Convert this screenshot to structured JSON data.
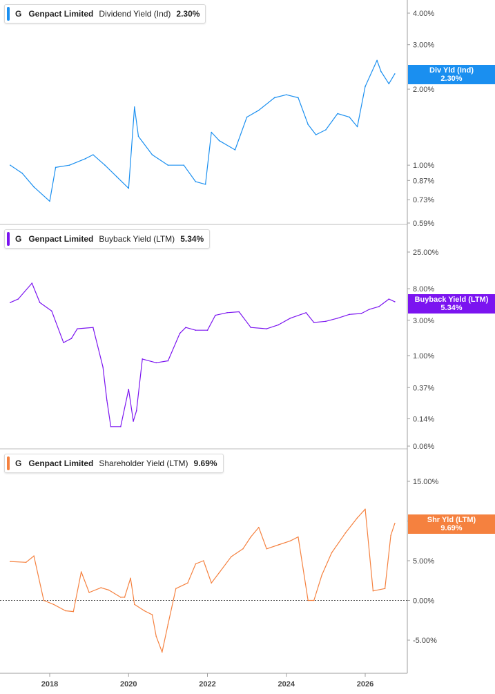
{
  "panels": [
    {
      "ticker": "G",
      "company": "Genpact Limited",
      "metric": "Dividend Yield (Ind)",
      "value": "2.30%",
      "color": "#1a8ff0",
      "badge_label": "Div Yld (Ind)",
      "badge_value": "2.30%",
      "scale": "log",
      "ticks": [
        "4.00%",
        "3.00%",
        "2.00%",
        "1.00%",
        "0.87%",
        "0.73%",
        "0.59%"
      ],
      "tick_values": [
        4.0,
        3.0,
        2.0,
        1.0,
        0.87,
        0.73,
        0.59
      ]
    },
    {
      "ticker": "G",
      "company": "Genpact Limited",
      "metric": "Buyback Yield (LTM)",
      "value": "5.34%",
      "color": "#7b14f0",
      "badge_label": "Buyback Yield (LTM)",
      "badge_value": "5.34%",
      "scale": "log",
      "ticks": [
        "25.00%",
        "8.00%",
        "3.00%",
        "1.00%",
        "0.37%",
        "0.14%",
        "0.06%"
      ],
      "tick_values": [
        25.0,
        8.0,
        3.0,
        1.0,
        0.37,
        0.14,
        0.06
      ]
    },
    {
      "ticker": "G",
      "company": "Genpact Limited",
      "metric": "Shareholder Yield (LTM)",
      "value": "9.69%",
      "color": "#f5813f",
      "badge_label": "Shr Yld (LTM)",
      "badge_value": "9.69%",
      "scale": "linear",
      "ticks": [
        "15.00%",
        "10.00%",
        "5.00%",
        "0.00%",
        "-5.00%"
      ],
      "tick_values": [
        15.0,
        10.0,
        5.0,
        0.0,
        -5.0
      ]
    }
  ],
  "x_ticks": [
    "2018",
    "2020",
    "2022",
    "2024",
    "2026"
  ],
  "chart_data": [
    {
      "type": "line",
      "title": "Genpact Limited Dividend Yield (Ind)",
      "yscale": "log",
      "ylim": [
        0.59,
        4.0
      ],
      "series": [
        {
          "name": "Dividend Yield (Ind)",
          "x": [
            2017.0,
            2017.3,
            2017.6,
            2018.0,
            2018.15,
            2018.5,
            2018.9,
            2019.1,
            2019.4,
            2019.7,
            2020.0,
            2020.15,
            2020.25,
            2020.6,
            2021.0,
            2021.4,
            2021.7,
            2021.95,
            2022.1,
            2022.3,
            2022.7,
            2023.0,
            2023.3,
            2023.7,
            2024.0,
            2024.3,
            2024.55,
            2024.75,
            2025.0,
            2025.3,
            2025.6,
            2025.8,
            2026.0,
            2026.3,
            2026.4,
            2026.6,
            2026.75
          ],
          "values": [
            1.0,
            0.93,
            0.82,
            0.72,
            0.98,
            1.0,
            1.06,
            1.1,
            1.0,
            0.9,
            0.81,
            1.7,
            1.3,
            1.1,
            1.0,
            1.0,
            0.86,
            0.84,
            1.35,
            1.25,
            1.15,
            1.55,
            1.65,
            1.85,
            1.9,
            1.85,
            1.45,
            1.32,
            1.38,
            1.6,
            1.55,
            1.42,
            2.05,
            2.6,
            2.35,
            2.1,
            2.3
          ]
        }
      ],
      "x_ticks": [
        "2018",
        "2020",
        "2022",
        "2024",
        "2026"
      ]
    },
    {
      "type": "line",
      "title": "Genpact Limited Buyback Yield (LTM)",
      "yscale": "log",
      "ylim": [
        0.06,
        25.0
      ],
      "series": [
        {
          "name": "Buyback Yield (LTM)",
          "x": [
            2017.0,
            2017.2,
            2017.55,
            2017.75,
            2018.05,
            2018.35,
            2018.55,
            2018.7,
            2019.1,
            2019.35,
            2019.45,
            2019.55,
            2019.8,
            2020.0,
            2020.12,
            2020.2,
            2020.35,
            2020.7,
            2021.0,
            2021.3,
            2021.45,
            2021.7,
            2022.0,
            2022.2,
            2022.5,
            2022.8,
            2023.1,
            2023.5,
            2023.8,
            2024.1,
            2024.5,
            2024.7,
            2025.0,
            2025.3,
            2025.6,
            2025.9,
            2026.1,
            2026.35,
            2026.6,
            2026.75
          ],
          "values": [
            5.2,
            5.8,
            9.5,
            5.2,
            4.0,
            1.5,
            1.7,
            2.3,
            2.4,
            0.7,
            0.25,
            0.11,
            0.11,
            0.35,
            0.13,
            0.18,
            0.9,
            0.8,
            0.85,
            2.0,
            2.4,
            2.2,
            2.2,
            3.5,
            3.8,
            3.9,
            2.4,
            2.3,
            2.6,
            3.2,
            3.8,
            2.8,
            2.9,
            3.2,
            3.6,
            3.7,
            4.2,
            4.6,
            5.8,
            5.34
          ]
        }
      ],
      "x_ticks": [
        "2018",
        "2020",
        "2022",
        "2024",
        "2026"
      ]
    },
    {
      "type": "line",
      "title": "Genpact Limited Shareholder Yield (LTM)",
      "yscale": "linear",
      "ylim": [
        -5.0,
        15.0
      ],
      "series": [
        {
          "name": "Shareholder Yield (LTM)",
          "x": [
            2017.0,
            2017.4,
            2017.6,
            2017.85,
            2018.1,
            2018.4,
            2018.6,
            2018.8,
            2019.0,
            2019.3,
            2019.5,
            2019.8,
            2019.9,
            2020.05,
            2020.15,
            2020.4,
            2020.6,
            2020.7,
            2020.85,
            2021.0,
            2021.2,
            2021.5,
            2021.7,
            2021.9,
            2022.1,
            2022.3,
            2022.6,
            2022.9,
            2023.1,
            2023.3,
            2023.5,
            2023.8,
            2024.1,
            2024.3,
            2024.55,
            2024.7,
            2024.9,
            2025.15,
            2025.5,
            2025.8,
            2026.0,
            2026.2,
            2026.5,
            2026.65,
            2026.75
          ],
          "values": [
            4.9,
            4.8,
            5.6,
            0.0,
            -0.5,
            -1.3,
            -1.4,
            3.6,
            1.0,
            1.6,
            1.3,
            0.4,
            0.4,
            2.8,
            -0.5,
            -1.3,
            -1.8,
            -4.5,
            -6.5,
            -3.0,
            1.5,
            2.2,
            4.6,
            5.0,
            2.2,
            3.5,
            5.5,
            6.5,
            8.0,
            9.2,
            6.5,
            7.0,
            7.5,
            8.0,
            0.0,
            0.0,
            3.2,
            6.0,
            8.5,
            10.4,
            11.5,
            1.2,
            1.5,
            8.2,
            9.69
          ]
        }
      ],
      "x_ticks": [
        "2018",
        "2020",
        "2022",
        "2024",
        "2026"
      ]
    }
  ]
}
